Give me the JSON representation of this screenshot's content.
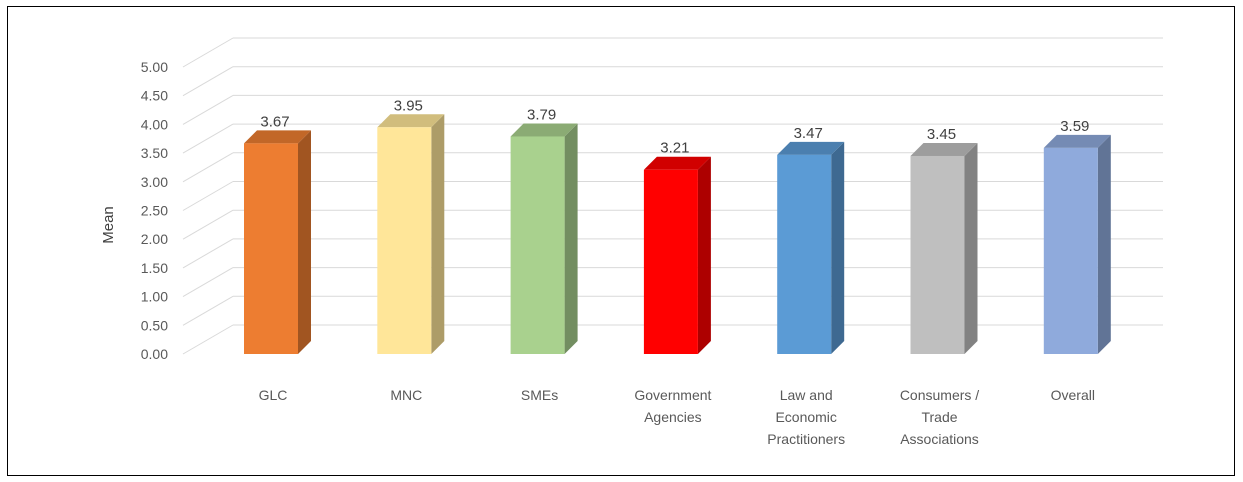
{
  "chart_data": {
    "type": "bar",
    "title": "",
    "xlabel": "",
    "ylabel": "Mean",
    "ylim": [
      0,
      5
    ],
    "yticks": [
      "0.00",
      "0.50",
      "1.00",
      "1.50",
      "2.00",
      "2.50",
      "3.00",
      "3.50",
      "4.00",
      "4.50",
      "5.00"
    ],
    "grid": true,
    "categories": [
      [
        "GLC"
      ],
      [
        "MNC"
      ],
      [
        "SMEs"
      ],
      [
        "Government",
        "Agencies"
      ],
      [
        "Law and",
        "Economic",
        "Practitioners"
      ],
      [
        "Consumers /",
        "Trade",
        "Associations"
      ],
      [
        "Overall"
      ]
    ],
    "values": [
      3.67,
      3.95,
      3.79,
      3.21,
      3.47,
      3.45,
      3.59
    ],
    "data_labels": [
      "3.67",
      "3.95",
      "3.79",
      "3.21",
      "3.47",
      "3.45",
      "3.59"
    ],
    "colors": [
      "#ED7D31",
      "#FFE699",
      "#A9D18E",
      "#FF0000",
      "#5B9BD5",
      "#BFBFBF",
      "#8FAADC"
    ]
  }
}
